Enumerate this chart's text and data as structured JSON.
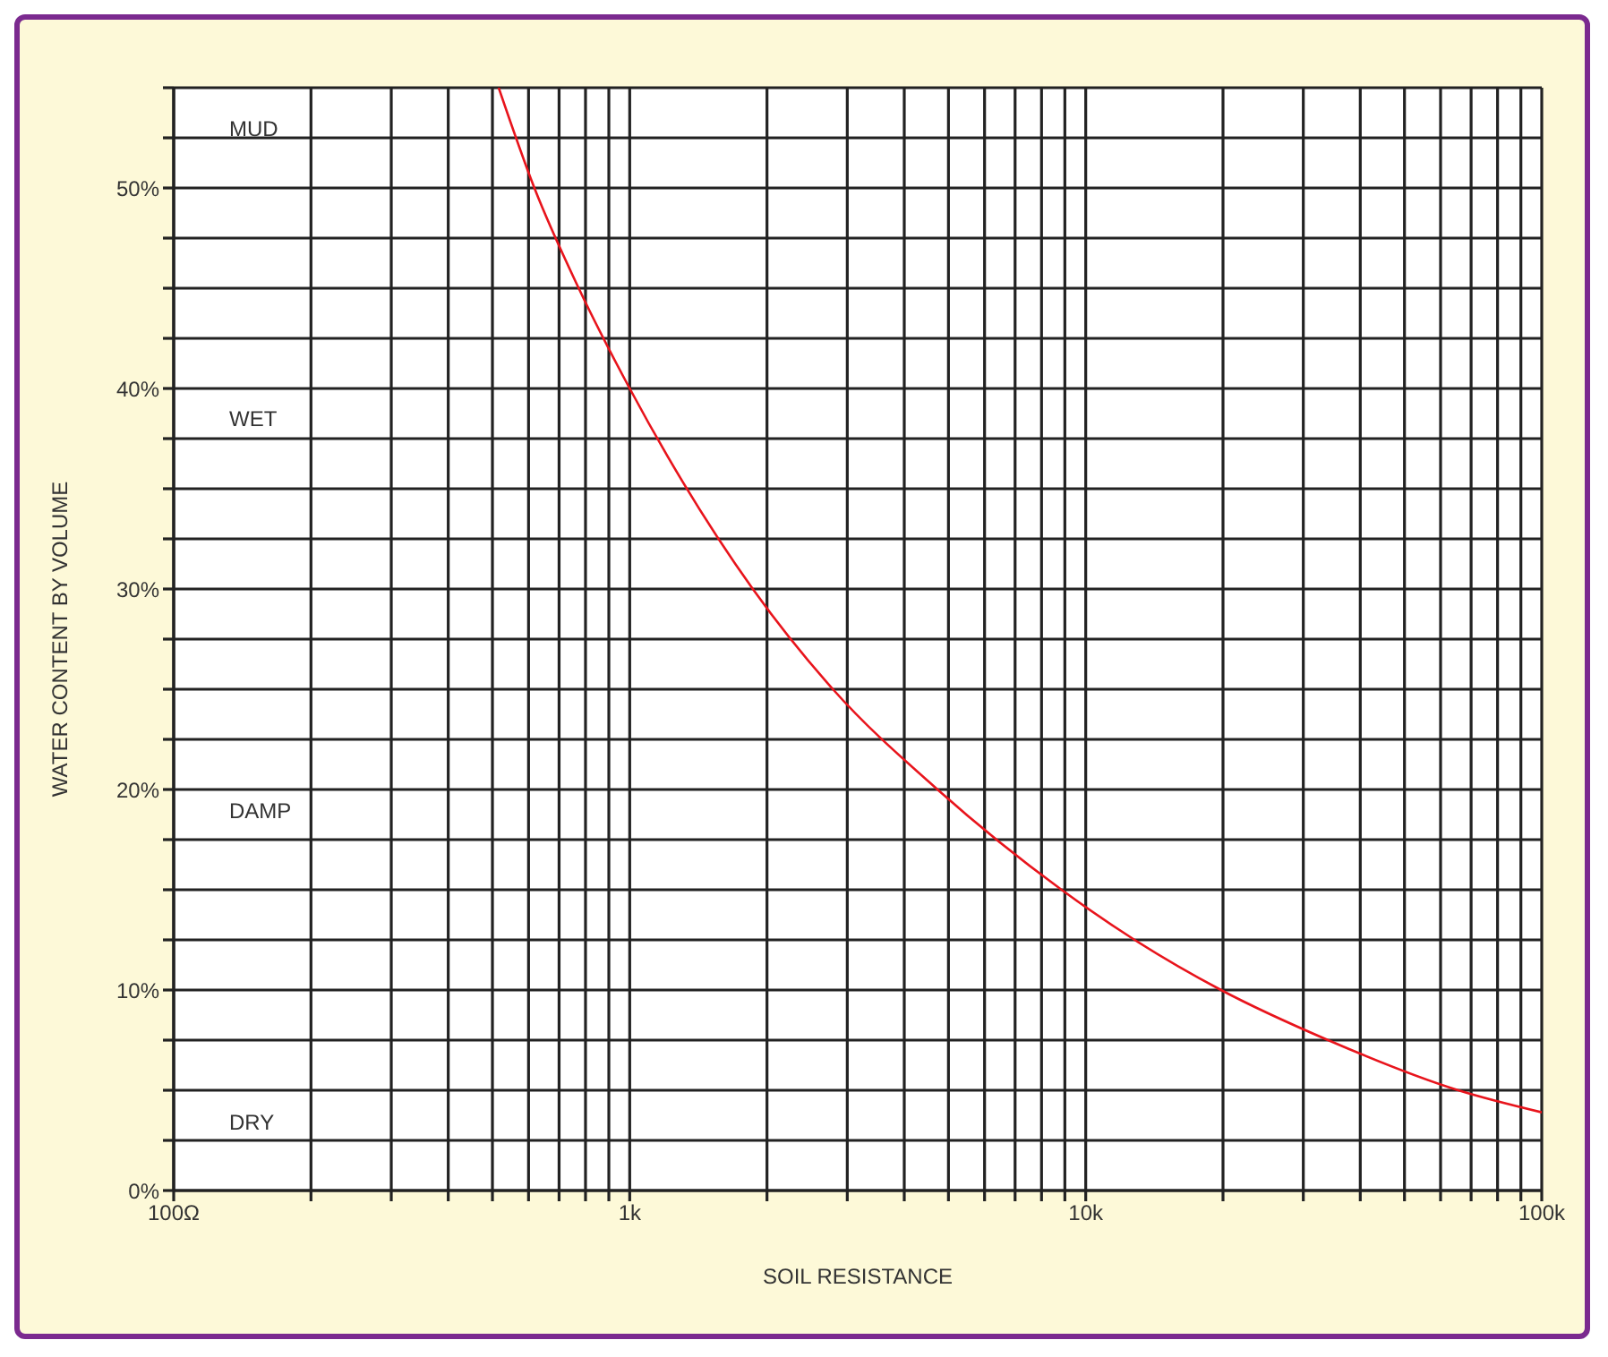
{
  "chart_data": {
    "type": "line",
    "xlabel": "SOIL RESISTANCE",
    "ylabel": "WATER CONTENT BY VOLUME",
    "log": "x",
    "grid": true,
    "marker": "none",
    "xlim": [
      100,
      100000
    ],
    "ylim": [
      0,
      55
    ],
    "xticks": [
      {
        "value": 100,
        "label": "100Ω"
      },
      {
        "value": 200,
        "label": null
      },
      {
        "value": 300,
        "label": null
      },
      {
        "value": 400,
        "label": null
      },
      {
        "value": 500,
        "label": null
      },
      {
        "value": 600,
        "label": null
      },
      {
        "value": 700,
        "label": null
      },
      {
        "value": 800,
        "label": null
      },
      {
        "value": 900,
        "label": null
      },
      {
        "value": 1000,
        "label": "1k"
      },
      {
        "value": 2000,
        "label": null
      },
      {
        "value": 3000,
        "label": null
      },
      {
        "value": 4000,
        "label": null
      },
      {
        "value": 5000,
        "label": null
      },
      {
        "value": 6000,
        "label": null
      },
      {
        "value": 7000,
        "label": null
      },
      {
        "value": 8000,
        "label": null
      },
      {
        "value": 9000,
        "label": null
      },
      {
        "value": 10000,
        "label": "10k"
      },
      {
        "value": 20000,
        "label": null
      },
      {
        "value": 30000,
        "label": null
      },
      {
        "value": 40000,
        "label": null
      },
      {
        "value": 50000,
        "label": null
      },
      {
        "value": 60000,
        "label": null
      },
      {
        "value": 70000,
        "label": null
      },
      {
        "value": 80000,
        "label": null
      },
      {
        "value": 90000,
        "label": null
      },
      {
        "value": 100000,
        "label": "100k"
      }
    ],
    "yticks": [
      {
        "value": 0,
        "label": "0%"
      },
      {
        "value": 2.5,
        "label": null
      },
      {
        "value": 5,
        "label": null
      },
      {
        "value": 7.5,
        "label": null
      },
      {
        "value": 10,
        "label": "10%"
      },
      {
        "value": 12.5,
        "label": null
      },
      {
        "value": 15,
        "label": null
      },
      {
        "value": 17.5,
        "label": null
      },
      {
        "value": 20,
        "label": "20%"
      },
      {
        "value": 22.5,
        "label": null
      },
      {
        "value": 25,
        "label": null
      },
      {
        "value": 27.5,
        "label": null
      },
      {
        "value": 30,
        "label": "30%"
      },
      {
        "value": 32.5,
        "label": null
      },
      {
        "value": 35,
        "label": null
      },
      {
        "value": 37.5,
        "label": null
      },
      {
        "value": 40,
        "label": "40%"
      },
      {
        "value": 42.5,
        "label": null
      },
      {
        "value": 45,
        "label": null
      },
      {
        "value": 47.5,
        "label": null
      },
      {
        "value": 50,
        "label": "50%"
      },
      {
        "value": 52.5,
        "label": null
      },
      {
        "value": 55,
        "label": null
      }
    ],
    "series": [
      {
        "color": "#e8141c",
        "x": [
          516,
          618,
          773,
          1000,
          1862,
          2790,
          4730,
          8850,
          12800,
          19800,
          34000,
          65600,
          100000
        ],
        "values": [
          55,
          50,
          45,
          40,
          30,
          25,
          20,
          15,
          12.5,
          10,
          7.5,
          5,
          3.9
        ]
      }
    ],
    "annotations": [
      "MUD",
      "WET",
      "DAMP",
      "DRY"
    ]
  }
}
